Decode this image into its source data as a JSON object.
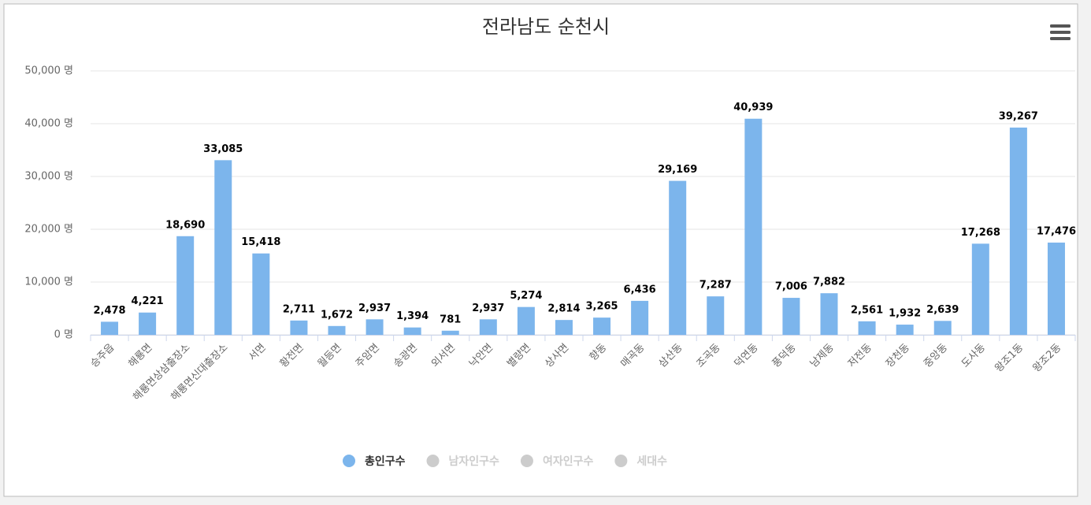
{
  "chart_data": {
    "type": "bar",
    "title": "전라남도 순천시",
    "categories": [
      "승주읍",
      "해룡면",
      "해룡면상삼출장소",
      "해룡면신대출장소",
      "서면",
      "황전면",
      "월등면",
      "주암면",
      "송광면",
      "외서면",
      "낙안면",
      "별량면",
      "상사면",
      "향동",
      "매곡동",
      "삼산동",
      "조곡동",
      "덕연동",
      "풍덕동",
      "남제동",
      "저전동",
      "장천동",
      "중앙동",
      "도사동",
      "왕조1동",
      "왕조2동"
    ],
    "series": [
      {
        "name": "총인구수",
        "color": "#7cb5ec",
        "values": [
          2478,
          4221,
          18690,
          33085,
          15418,
          2711,
          1672,
          2937,
          1394,
          781,
          2937,
          5274,
          2814,
          3265,
          6436,
          29169,
          7287,
          40939,
          7006,
          7882,
          2561,
          1932,
          2639,
          17268,
          39267,
          17476
        ],
        "value_labels": [
          "2,478",
          "4,221",
          "18,690",
          "33,085",
          "15,418",
          "2,711",
          "1,672",
          "2,937",
          "1,394",
          "781",
          "2,937",
          "5,274",
          "2,814",
          "3,265",
          "6,436",
          "29,169",
          "7,287",
          "40,939",
          "7,006",
          "7,882",
          "2,561",
          "1,932",
          "2,639",
          "17,268",
          "39,267",
          "17,476"
        ]
      }
    ],
    "hidden_series": [
      "남자인구수",
      "여자인구수",
      "세대수"
    ],
    "ylim": [
      0,
      50000
    ],
    "yticks": [
      {
        "value": 0,
        "label": "0 명"
      },
      {
        "value": 10000,
        "label": "10,000 명"
      },
      {
        "value": 20000,
        "label": "20,000 명"
      },
      {
        "value": 30000,
        "label": "30,000 명"
      },
      {
        "value": 40000,
        "label": "40,000 명"
      },
      {
        "value": 50000,
        "label": "50,000 명"
      }
    ],
    "grid": true
  }
}
